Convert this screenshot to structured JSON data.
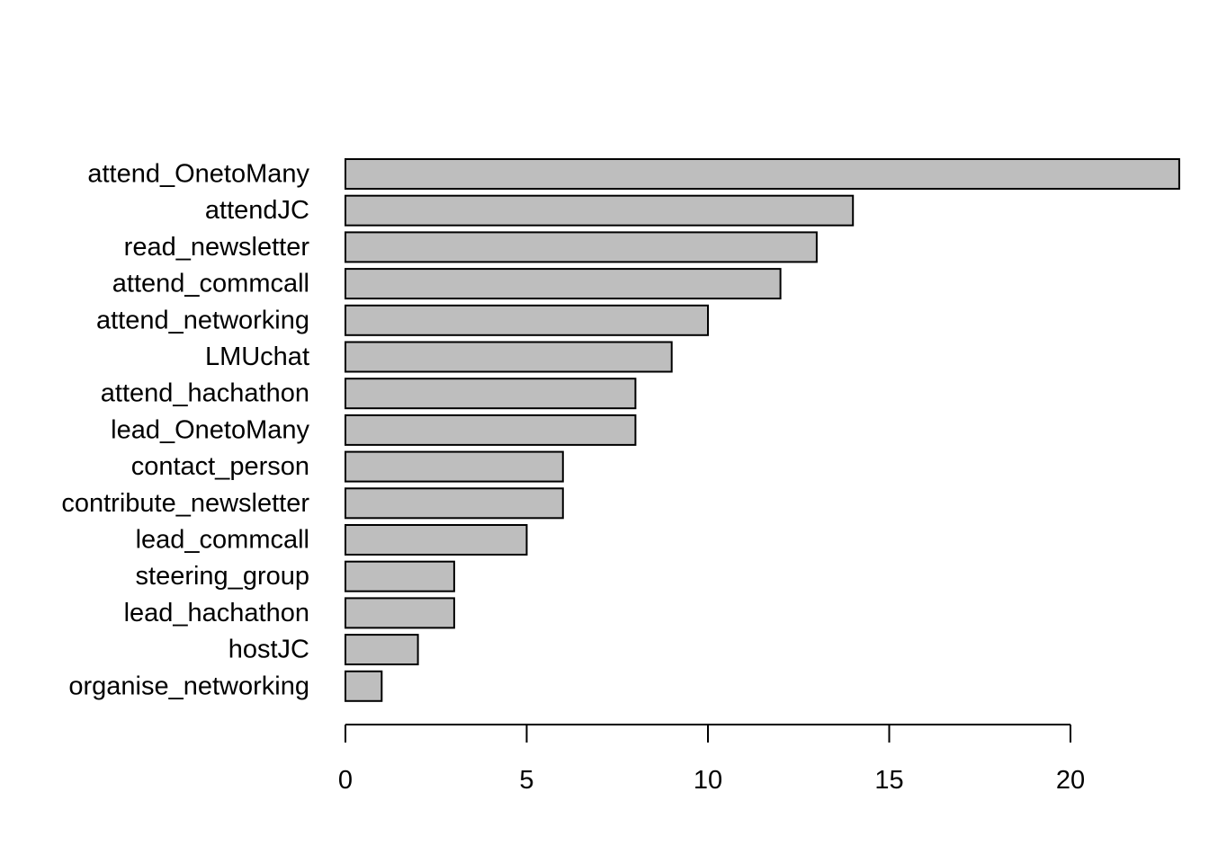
{
  "chart_data": {
    "type": "bar",
    "orientation": "horizontal",
    "categories": [
      "attend_OnetoMany",
      "attendJC",
      "read_newsletter",
      "attend_commcall",
      "attend_networking",
      "LMUchat",
      "attend_hachathon",
      "lead_OnetoMany",
      "contact_person",
      "contribute_newsletter",
      "lead_commcall",
      "steering_group",
      "lead_hachathon",
      "hostJC",
      "organise_networking"
    ],
    "values": [
      23,
      14,
      13,
      12,
      10,
      9,
      8,
      8,
      6,
      6,
      5,
      3,
      3,
      2,
      1
    ],
    "xlim": [
      0,
      23
    ],
    "x_ticks": [
      "0",
      "5",
      "10",
      "15",
      "20"
    ],
    "bar_color": "#bebebe",
    "grid": false,
    "legend": "none"
  }
}
